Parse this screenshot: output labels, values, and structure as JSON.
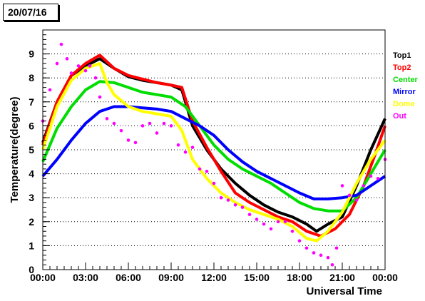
{
  "date_label": "20/07/16",
  "chart_data": {
    "type": "line",
    "title": "",
    "xlabel": "Universal Time",
    "ylabel": "Temperature(degree)",
    "xlim": [
      0,
      24
    ],
    "ylim": [
      0,
      10
    ],
    "x_ticks": [
      {
        "v": 0,
        "label": "00:00"
      },
      {
        "v": 3,
        "label": "03:00"
      },
      {
        "v": 6,
        "label": "06:00"
      },
      {
        "v": 9,
        "label": "09:00"
      },
      {
        "v": 12,
        "label": "12:00"
      },
      {
        "v": 15,
        "label": "15:00"
      },
      {
        "v": 18,
        "label": "18:00"
      },
      {
        "v": 21,
        "label": "21:00"
      },
      {
        "v": 24,
        "label": "00:00"
      }
    ],
    "y_ticks": [
      {
        "v": 0,
        "label": "0"
      },
      {
        "v": 1,
        "label": "1"
      },
      {
        "v": 2,
        "label": "2"
      },
      {
        "v": 3,
        "label": "3"
      },
      {
        "v": 4,
        "label": "4"
      },
      {
        "v": 5,
        "label": "5"
      },
      {
        "v": 6,
        "label": "6"
      },
      {
        "v": 7,
        "label": "7"
      },
      {
        "v": 8,
        "label": "8"
      },
      {
        "v": 9,
        "label": "9"
      }
    ],
    "grid": "horizontal dotted",
    "legend_position": "right",
    "series": [
      {
        "name": "Top1",
        "color": "#000000",
        "style": "line",
        "x": [
          0,
          1,
          2,
          3,
          4,
          5,
          6,
          7,
          8,
          9,
          9.75,
          10.5,
          11.5,
          12.5,
          13.5,
          14.5,
          15.5,
          16.5,
          17.5,
          18.5,
          19.2,
          20,
          21,
          22,
          23,
          24
        ],
        "y": [
          5.3,
          7.0,
          8.1,
          8.5,
          8.8,
          8.4,
          8.05,
          7.9,
          7.8,
          7.7,
          7.5,
          6.0,
          5.0,
          4.2,
          3.6,
          3.1,
          2.7,
          2.4,
          2.2,
          1.9,
          1.6,
          1.9,
          2.2,
          3.5,
          5.0,
          6.3
        ]
      },
      {
        "name": "Top2",
        "color": "#ff0000",
        "style": "line",
        "x": [
          0,
          1,
          2,
          3,
          4,
          5,
          6,
          7,
          8,
          9,
          9.75,
          10.5,
          11.5,
          12.5,
          13.5,
          14.5,
          15.5,
          16.5,
          17.5,
          18.5,
          19.5,
          20.5,
          21.5,
          22.5,
          23.3,
          24
        ],
        "y": [
          5.2,
          7.0,
          8.1,
          8.6,
          8.95,
          8.4,
          8.1,
          7.95,
          7.8,
          7.7,
          7.6,
          6.2,
          5.1,
          4.1,
          3.2,
          2.8,
          2.5,
          2.2,
          2.0,
          1.6,
          1.4,
          1.7,
          2.3,
          3.5,
          4.8,
          6.0
        ]
      },
      {
        "name": "Center",
        "color": "#00dd00",
        "style": "line",
        "x": [
          0,
          1,
          2,
          3,
          4,
          5,
          6,
          7,
          8,
          9,
          10,
          11,
          12,
          13,
          14,
          15,
          16,
          17,
          18,
          19,
          20,
          21,
          22,
          23,
          24
        ],
        "y": [
          4.5,
          5.9,
          6.8,
          7.5,
          7.85,
          7.8,
          7.6,
          7.4,
          7.3,
          7.2,
          6.8,
          6.0,
          5.2,
          4.6,
          4.2,
          3.9,
          3.6,
          3.2,
          2.8,
          2.55,
          2.45,
          2.45,
          3.0,
          4.0,
          5.0
        ]
      },
      {
        "name": "Mirror",
        "color": "#0000ff",
        "style": "line",
        "x": [
          0,
          1,
          2,
          3,
          4,
          5,
          6,
          7,
          8,
          9,
          10,
          11,
          12,
          13,
          14,
          15,
          16,
          17,
          18,
          19,
          20,
          21,
          22,
          23,
          24
        ],
        "y": [
          3.9,
          4.6,
          5.4,
          6.1,
          6.6,
          6.8,
          6.8,
          6.75,
          6.7,
          6.6,
          6.3,
          6.0,
          5.6,
          5.0,
          4.5,
          4.1,
          3.8,
          3.5,
          3.2,
          2.95,
          2.95,
          3.0,
          3.1,
          3.5,
          3.9
        ]
      },
      {
        "name": "Dome",
        "color": "#ffff00",
        "style": "line",
        "x": [
          0,
          1,
          2,
          3,
          4,
          4.5,
          5,
          6,
          7,
          8,
          9,
          9.75,
          10.5,
          11.5,
          12.5,
          13.5,
          14.5,
          15.5,
          16.5,
          17.5,
          18.5,
          19.2,
          20,
          21,
          22,
          23,
          24
        ],
        "y": [
          5.0,
          6.8,
          7.9,
          8.4,
          8.6,
          7.8,
          7.3,
          6.8,
          6.6,
          6.5,
          6.4,
          5.8,
          4.6,
          3.8,
          3.2,
          2.8,
          2.5,
          2.3,
          2.1,
          1.8,
          1.3,
          1.2,
          1.6,
          2.4,
          3.6,
          4.6,
          5.4
        ]
      },
      {
        "name": "Out",
        "color": "#ff00ff",
        "style": "points",
        "x": [
          0,
          0.5,
          1,
          1.3,
          1.7,
          2,
          2.5,
          3,
          3.3,
          3.7,
          4,
          4.5,
          5,
          5.5,
          6,
          6.5,
          7,
          7.5,
          8,
          8.5,
          9,
          9.5,
          10,
          10.5,
          11,
          11.5,
          12,
          12.5,
          13,
          13.5,
          14,
          14.5,
          15,
          15.5,
          16,
          16.5,
          17,
          17.5,
          18,
          18.5,
          19,
          19.5,
          20,
          20.3,
          20.6,
          21,
          21.5,
          22,
          22.5,
          23,
          23.5,
          24
        ],
        "y": [
          6.2,
          7.5,
          8.6,
          9.4,
          8.8,
          8.2,
          8.5,
          8.3,
          8.5,
          8.0,
          7.2,
          6.3,
          6.1,
          5.8,
          5.4,
          5.3,
          6.0,
          6.1,
          5.7,
          6.1,
          6.0,
          5.2,
          4.9,
          5.1,
          4.2,
          4.1,
          3.6,
          3.0,
          2.9,
          2.7,
          2.6,
          2.3,
          2.1,
          1.9,
          1.7,
          2.0,
          2.0,
          1.6,
          1.2,
          0.9,
          0.7,
          0.6,
          0.5,
          0.2,
          0.9,
          3.5,
          3.1,
          2.9,
          3.5,
          3.9,
          3.8,
          4.6
        ]
      }
    ]
  }
}
